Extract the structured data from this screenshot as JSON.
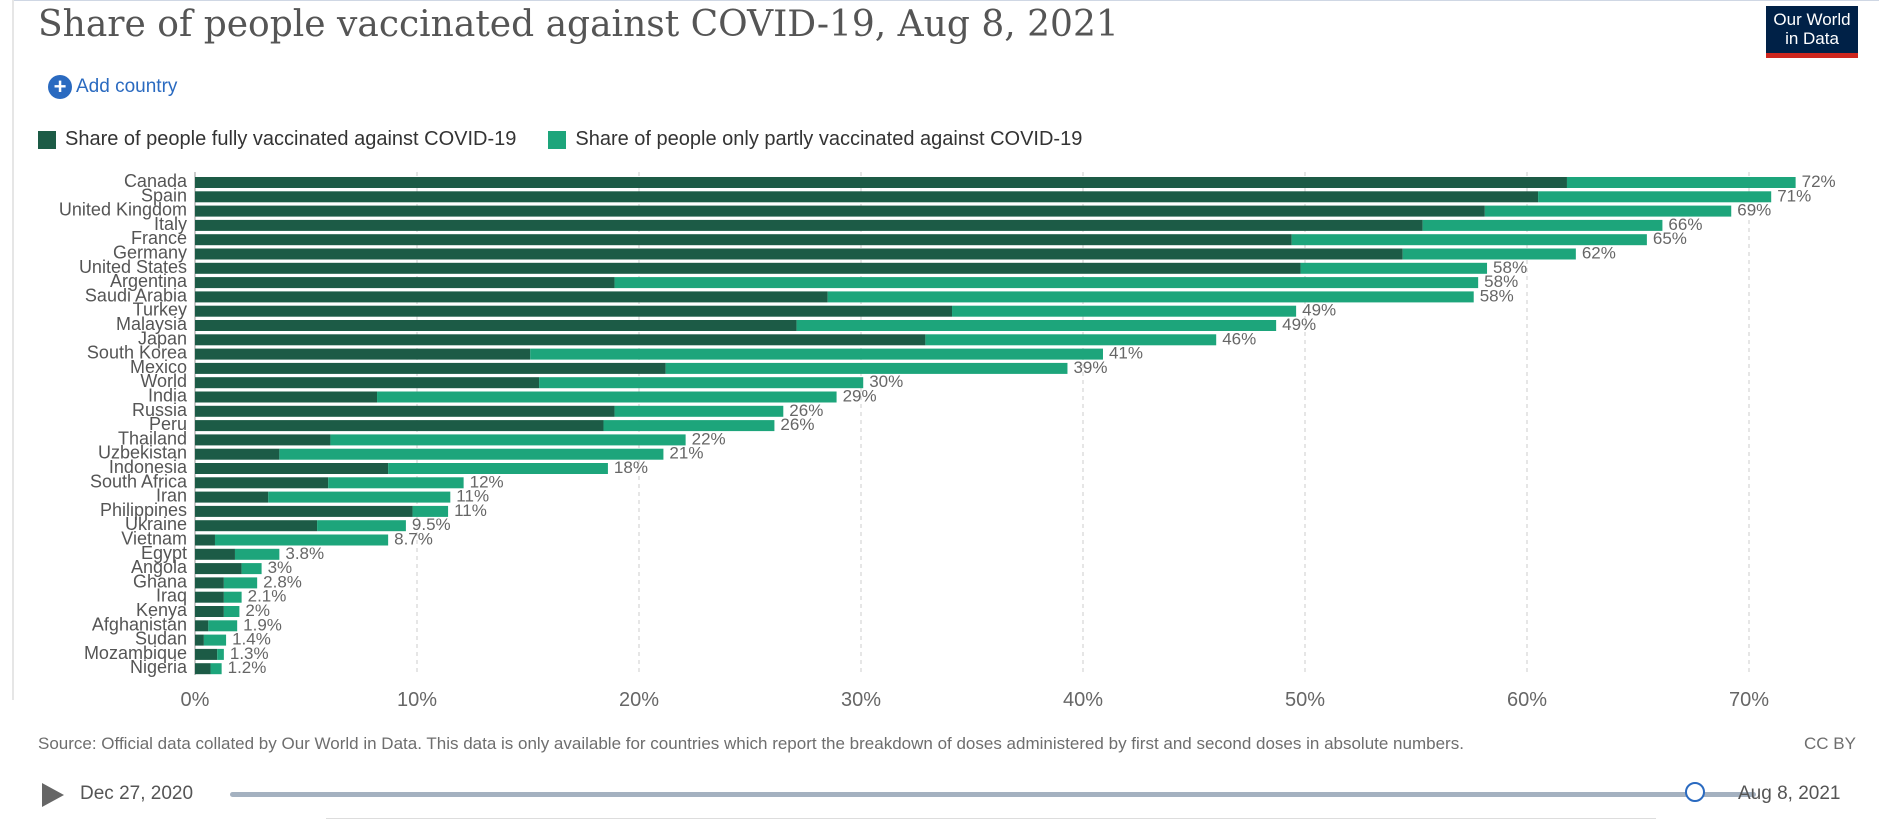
{
  "title": "Share of people vaccinated against COVID-19, Aug 8, 2021",
  "logo": {
    "line1": "Our World",
    "line2": "in Data"
  },
  "add_country_label": "Add country",
  "colors": {
    "full": "#1c5b46",
    "partial": "#1da57b",
    "grid": "#cccccc",
    "accent": "#2a6ac0",
    "logo_bg": "#002147",
    "logo_bar": "#ce261e"
  },
  "icons": {
    "add": "plus-circle-icon",
    "play": "play-icon"
  },
  "chart_data": {
    "type": "bar",
    "orientation": "horizontal",
    "stacked": true,
    "title": "Share of people vaccinated against COVID-19, Aug 8, 2021",
    "categories": [
      "Canada",
      "Spain",
      "United Kingdom",
      "Italy",
      "France",
      "Germany",
      "United States",
      "Argentina",
      "Saudi Arabia",
      "Turkey",
      "Malaysia",
      "Japan",
      "South Korea",
      "Mexico",
      "World",
      "India",
      "Russia",
      "Peru",
      "Thailand",
      "Uzbekistan",
      "Indonesia",
      "South Africa",
      "Iran",
      "Philippines",
      "Ukraine",
      "Vietnam",
      "Egypt",
      "Angola",
      "Ghana",
      "Iraq",
      "Kenya",
      "Afghanistan",
      "Sudan",
      "Mozambique",
      "Nigeria"
    ],
    "series": [
      {
        "name": "Share of people fully vaccinated against COVID-19",
        "values": [
          61.8,
          60.5,
          58.1,
          55.3,
          49.4,
          54.4,
          49.8,
          18.9,
          28.5,
          34.1,
          27.1,
          32.9,
          15.1,
          21.2,
          15.5,
          8.2,
          18.9,
          18.4,
          6.1,
          3.8,
          8.7,
          6.0,
          3.3,
          9.8,
          5.5,
          0.9,
          1.8,
          2.1,
          1.3,
          1.3,
          1.3,
          0.6,
          0.4,
          1.0,
          0.7
        ]
      },
      {
        "name": "Share of people only partly vaccinated against COVID-19",
        "values": [
          10.3,
          10.5,
          11.1,
          10.8,
          16.0,
          7.8,
          8.4,
          38.9,
          29.1,
          15.5,
          21.6,
          13.1,
          25.8,
          18.1,
          14.6,
          20.7,
          7.6,
          7.7,
          16.0,
          17.3,
          9.9,
          6.1,
          8.2,
          1.6,
          4.0,
          7.8,
          2.0,
          0.9,
          1.5,
          0.8,
          0.7,
          1.3,
          1.0,
          0.3,
          0.5
        ]
      }
    ],
    "totals": [
      "72%",
      "71%",
      "69%",
      "66%",
      "65%",
      "62%",
      "58%",
      "58%",
      "58%",
      "49%",
      "49%",
      "46%",
      "41%",
      "39%",
      "30%",
      "29%",
      "26%",
      "26%",
      "22%",
      "21%",
      "18%",
      "12%",
      "11%",
      "11%",
      "9.5%",
      "8.7%",
      "3.8%",
      "3%",
      "2.8%",
      "2.1%",
      "2%",
      "1.9%",
      "1.4%",
      "1.3%",
      "1.2%"
    ],
    "x_ticks": [
      0,
      10,
      20,
      30,
      40,
      50,
      60,
      70
    ],
    "x_tick_labels": [
      "0%",
      "10%",
      "20%",
      "30%",
      "40%",
      "50%",
      "60%",
      "70%"
    ],
    "xlim": [
      0,
      73
    ],
    "grid": true,
    "legend_position": "top"
  },
  "source": "Source: Official data collated by Our World in Data. This data is only available for countries which report the breakdown of doses administered by first and second doses in absolute numbers.",
  "license": "CC BY",
  "timeline": {
    "start": "Dec 27, 2020",
    "end": "Aug 8, 2021",
    "position": 0.96
  }
}
